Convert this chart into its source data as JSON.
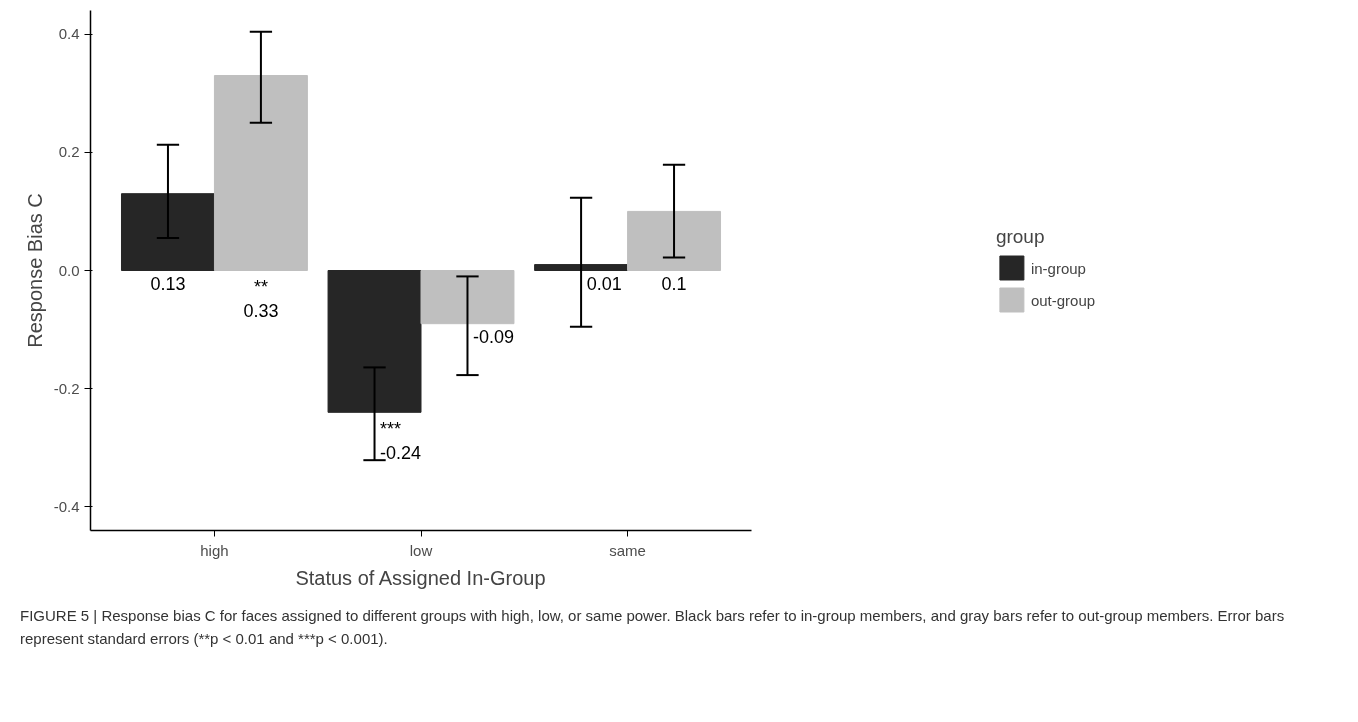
{
  "chart_data": {
    "type": "bar",
    "xlabel": "Status of Assigned In-Group",
    "ylabel": "Response Bias C",
    "legend_title": "group",
    "categories": [
      "high",
      "low",
      "same"
    ],
    "series": [
      {
        "name": "in-group",
        "color": "#262626",
        "values": [
          0.13,
          -0.24,
          0.01
        ],
        "errors": [
          [
            0.055,
            0.213
          ],
          [
            -0.321,
            -0.164
          ],
          [
            -0.095,
            0.123
          ]
        ],
        "value_labels": [
          "0.13",
          "***\n-0.24",
          "0.01"
        ]
      },
      {
        "name": "out-group",
        "color": "#bfbfbf",
        "values": [
          0.33,
          -0.09,
          0.1
        ],
        "errors": [
          [
            0.25,
            0.404
          ],
          [
            -0.177,
            -0.01
          ],
          [
            0.022,
            0.179
          ]
        ],
        "value_labels": [
          "**\n0.33",
          "-0.09",
          "0.1"
        ]
      }
    ],
    "ylim": [
      -0.44,
      0.44
    ],
    "yticks": [
      {
        "value": -0.4,
        "label": "-0.4"
      },
      {
        "value": -0.2,
        "label": "-0.2"
      },
      {
        "value": 0,
        "label": "0.0"
      },
      {
        "value": 0.2,
        "label": "0.2"
      },
      {
        "value": 0.4,
        "label": "0.4"
      }
    ],
    "grid": false,
    "legend": "right",
    "annotations": [
      "FIGURE 5 | Response bias C for faces assigned to different groups with high, low, or same power. Black bars refer to in-group members, and gray bars refer to out-group members. Error bars represent standard errors (**p < 0.01 and ***p < 0.001)."
    ]
  }
}
